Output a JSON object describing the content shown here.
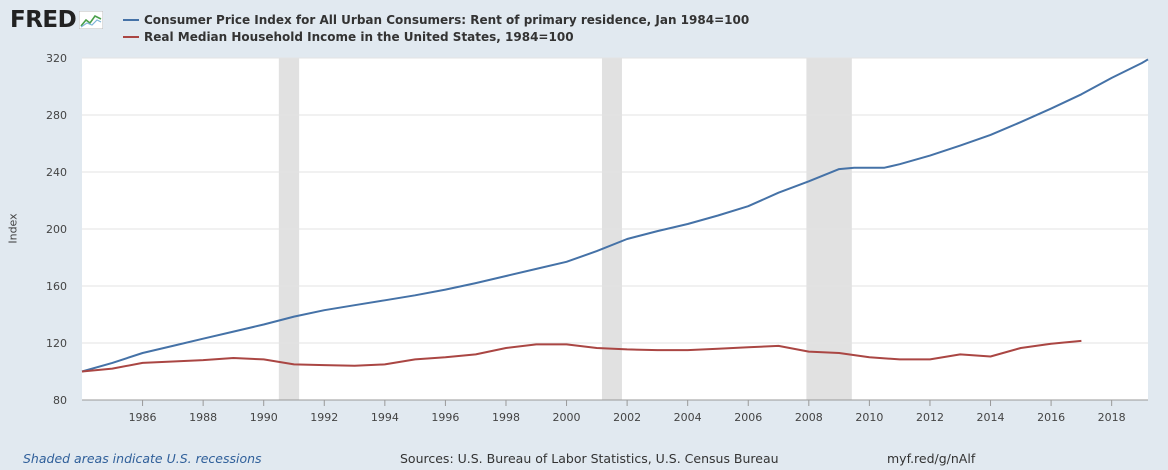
{
  "logo": {
    "text": "FRED"
  },
  "chart_data": {
    "type": "line",
    "title": "",
    "ylabel": "Index",
    "xlabel": "",
    "xlim": [
      1984.0,
      2019.2
    ],
    "ylim": [
      80,
      320
    ],
    "y_ticks": [
      80,
      120,
      160,
      200,
      240,
      280,
      320
    ],
    "x_ticks": [
      1986,
      1988,
      1990,
      1992,
      1994,
      1996,
      1998,
      2000,
      2002,
      2004,
      2006,
      2008,
      2010,
      2012,
      2014,
      2016,
      2018
    ],
    "recessions": [
      [
        1990.5,
        1991.17
      ],
      [
        2001.17,
        2001.83
      ],
      [
        2007.92,
        2009.42
      ]
    ],
    "series": [
      {
        "name": "Consumer Price Index for All Urban Consumers: Rent of primary residence, Jan 1984=100",
        "color": "#4572a7",
        "x": [
          1984,
          1985,
          1986,
          1987,
          1988,
          1989,
          1990,
          1991,
          1992,
          1993,
          1994,
          1995,
          1996,
          1997,
          1998,
          1999,
          2000,
          2001,
          2002,
          2003,
          2004,
          2005,
          2006,
          2007,
          2008,
          2009,
          2009.5,
          2010,
          2010.5,
          2011,
          2012,
          2013,
          2014,
          2015,
          2016,
          2017,
          2018,
          2019,
          2019.2
        ],
        "values": [
          100,
          106,
          113,
          118,
          123,
          128,
          133,
          138.5,
          143,
          146.5,
          150,
          153.5,
          157.5,
          162,
          167,
          172,
          177,
          184.5,
          193,
          198.5,
          203.5,
          209.5,
          216,
          225.5,
          233.5,
          242,
          243,
          243,
          243,
          245.5,
          251.5,
          258.5,
          266,
          275,
          284.5,
          294.5,
          306,
          316.5,
          319
        ]
      },
      {
        "name": "Real Median Household Income in the United States, 1984=100",
        "color": "#aa4643",
        "x": [
          1984,
          1985,
          1986,
          1987,
          1988,
          1989,
          1990,
          1991,
          1992,
          1993,
          1994,
          1995,
          1996,
          1997,
          1998,
          1999,
          2000,
          2001,
          2002,
          2003,
          2004,
          2005,
          2006,
          2007,
          2008,
          2009,
          2010,
          2011,
          2012,
          2013,
          2014,
          2015,
          2016,
          2017
        ],
        "values": [
          100,
          102,
          106,
          107,
          108,
          109.5,
          108.5,
          105,
          104.5,
          104,
          105,
          108.5,
          110,
          112,
          116.5,
          119,
          119,
          116.5,
          115.5,
          115,
          115,
          116,
          117,
          118,
          114,
          113,
          110,
          108.5,
          108.5,
          112,
          110.5,
          116.5,
          119.5,
          121.5
        ]
      }
    ]
  },
  "legend": [
    {
      "label": "Consumer Price Index for All Urban Consumers: Rent of primary residence, Jan 1984=100",
      "color": "#4572a7"
    },
    {
      "label": "Real Median Household Income in the United States, 1984=100",
      "color": "#aa4643"
    }
  ],
  "footer": {
    "note": "Shaded areas indicate U.S. recessions",
    "sources": "Sources: U.S. Bureau of Labor Statistics, U.S. Census Bureau",
    "link": "myf.red/g/nAlf"
  }
}
